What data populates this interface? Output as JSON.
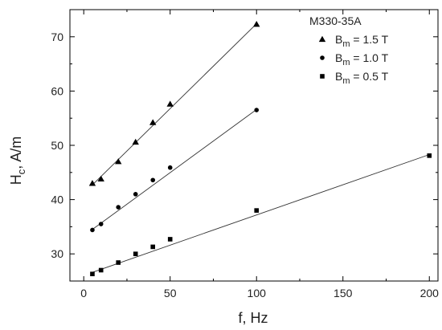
{
  "chart_data": {
    "type": "scatter",
    "title": "",
    "xlabel": "f, Hz",
    "ylabel_main": "H",
    "ylabel_sub": "c",
    "ylabel_rest": ", A/m",
    "xlim": [
      -8,
      205
    ],
    "ylim": [
      25,
      75
    ],
    "xticks": [
      0,
      50,
      100,
      150,
      200
    ],
    "yticks": [
      30,
      40,
      50,
      60,
      70
    ],
    "grid": false,
    "legend_position": "top-right",
    "legend_title": "M330-35A",
    "series": [
      {
        "label_main": "B",
        "label_sub": "m",
        "label_rest": " = 1.5 T",
        "marker": "triangle",
        "x": [
          5,
          10,
          20,
          30,
          40,
          50,
          100
        ],
        "y": [
          43.0,
          43.8,
          47.0,
          50.6,
          54.2,
          57.6,
          72.3
        ],
        "fit": [
          [
            5,
            42.7
          ],
          [
            100,
            72.4
          ]
        ]
      },
      {
        "label_main": "B",
        "label_sub": "m",
        "label_rest": " = 1.0 T",
        "marker": "circle",
        "x": [
          5,
          10,
          20,
          30,
          40,
          50,
          100
        ],
        "y": [
          34.4,
          35.5,
          38.6,
          41.0,
          43.6,
          45.9,
          56.5
        ],
        "fit": [
          [
            5,
            34.5
          ],
          [
            100,
            56.6
          ]
        ]
      },
      {
        "label_main": "B",
        "label_sub": "m",
        "label_rest": " = 0.5 T",
        "marker": "square",
        "x": [
          5,
          10,
          20,
          30,
          40,
          50,
          100,
          200
        ],
        "y": [
          26.3,
          27.0,
          28.4,
          30.0,
          31.3,
          32.7,
          38.0,
          48.1
        ],
        "fit": [
          [
            5,
            26.6
          ],
          [
            200,
            48.3
          ]
        ]
      }
    ]
  }
}
